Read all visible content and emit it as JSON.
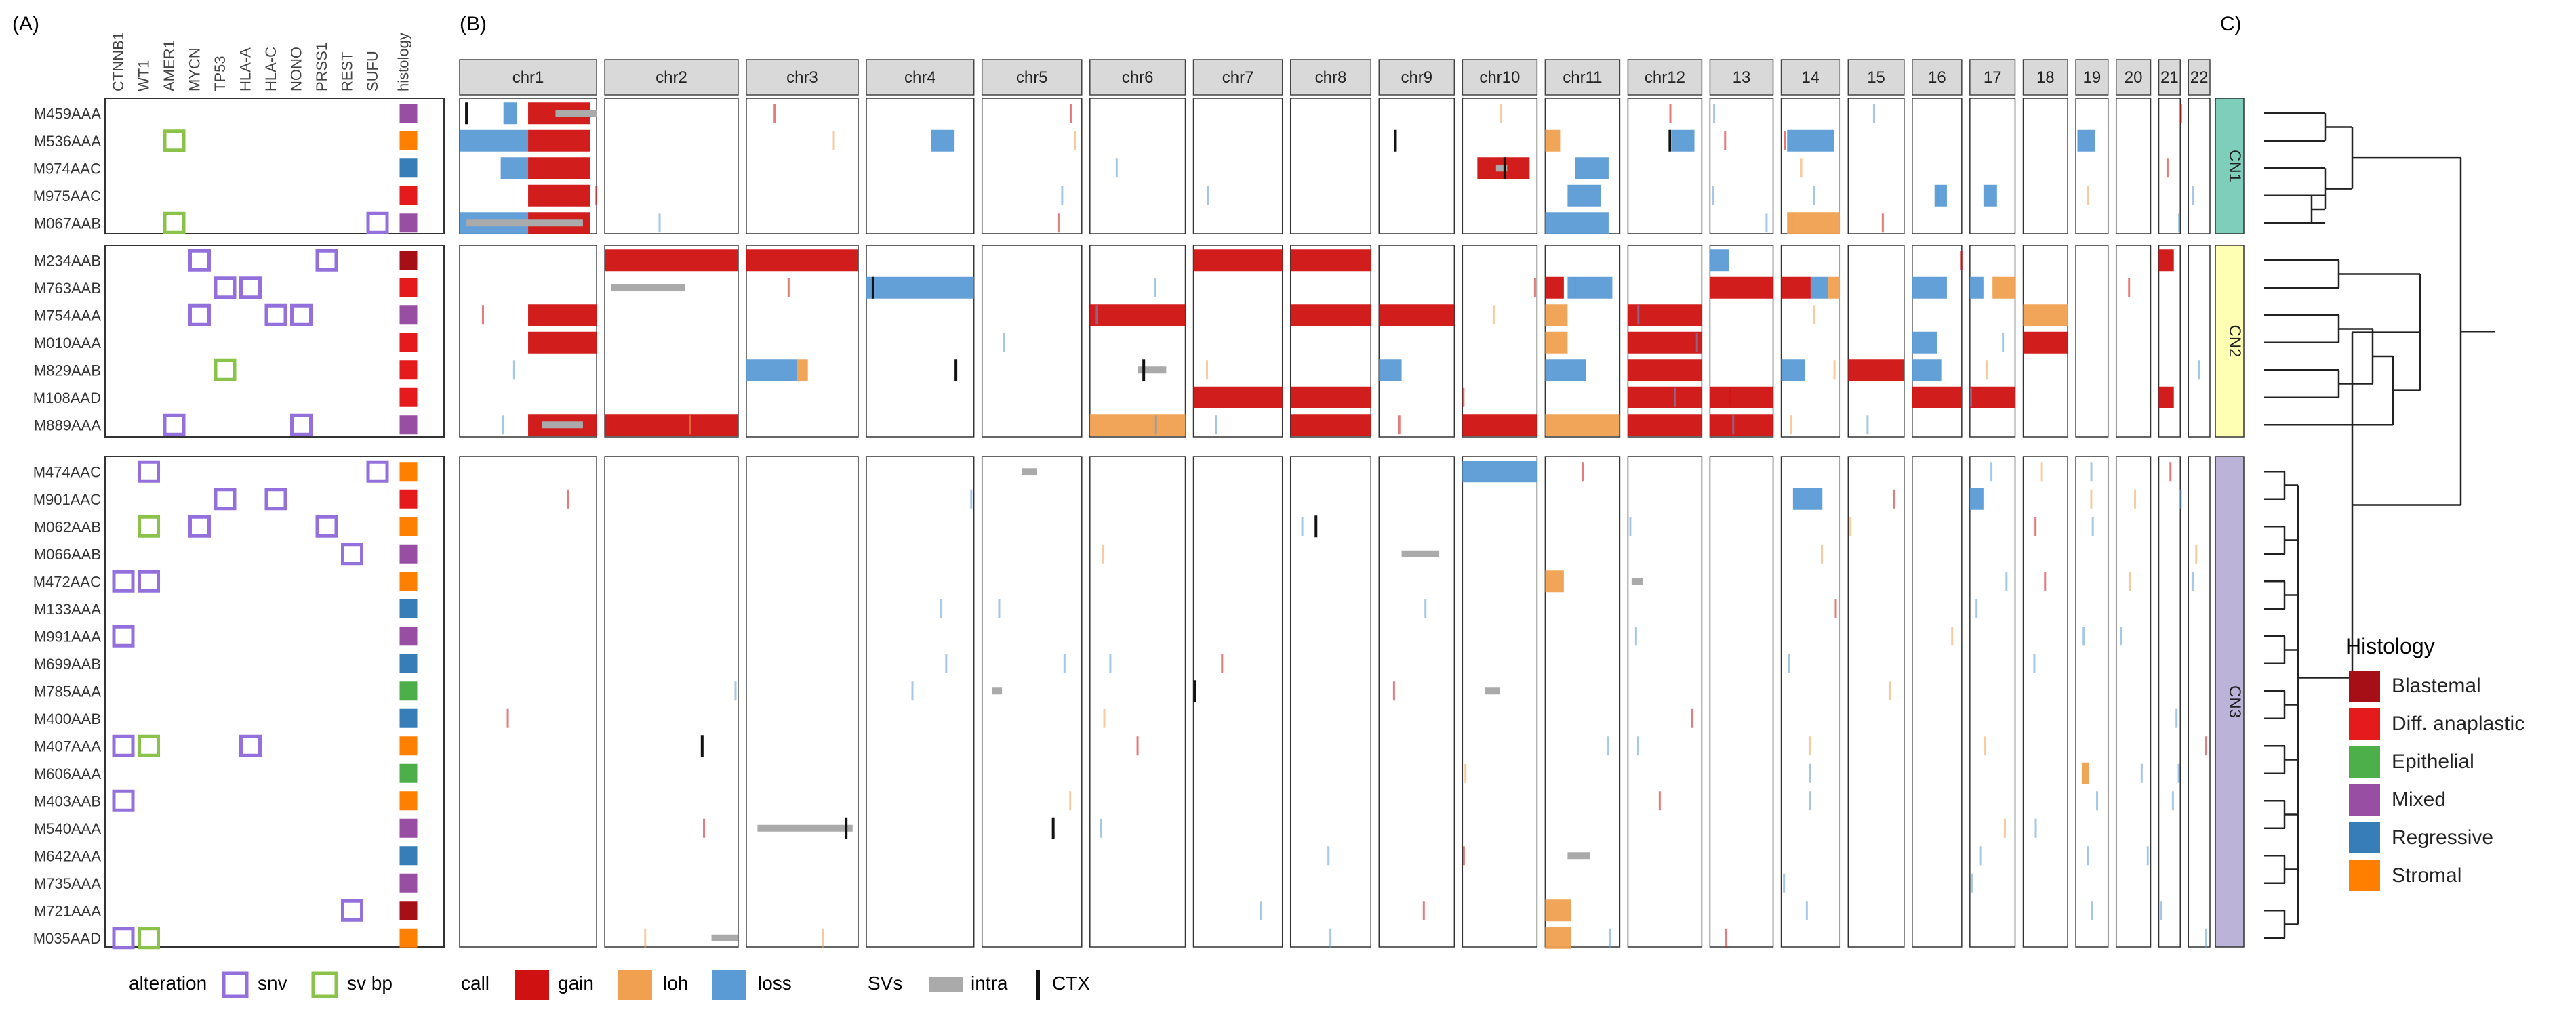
{
  "panel_labels": {
    "a": "(A)",
    "b": "(B)",
    "c": "C)"
  },
  "genes": [
    "CTNNB1",
    "WT1",
    "AMER1",
    "MYCN",
    "TP53",
    "HLA-A",
    "HLA-C",
    "NONO",
    "PRSS1",
    "REST",
    "SUFU"
  ],
  "histology_col": "histology",
  "chromosomes": [
    {
      "name": "chr1",
      "w": 191
    },
    {
      "name": "chr2",
      "w": 186
    },
    {
      "name": "chr3",
      "w": 156
    },
    {
      "name": "chr4",
      "w": 150
    },
    {
      "name": "chr5",
      "w": 139
    },
    {
      "name": "chr6",
      "w": 133
    },
    {
      "name": "chr7",
      "w": 124
    },
    {
      "name": "chr8",
      "w": 112
    },
    {
      "name": "chr9",
      "w": 105
    },
    {
      "name": "chr10",
      "w": 104
    },
    {
      "name": "chr11",
      "w": 104
    },
    {
      "name": "chr12",
      "w": 103
    },
    {
      "name": "13",
      "w": 88
    },
    {
      "name": "14",
      "w": 82
    },
    {
      "name": "15",
      "w": 78
    },
    {
      "name": "16",
      "w": 69
    },
    {
      "name": "17",
      "w": 63
    },
    {
      "name": "18",
      "w": 62
    },
    {
      "name": "19",
      "w": 45
    },
    {
      "name": "20",
      "w": 48
    },
    {
      "name": "21",
      "w": 30
    },
    {
      "name": "22",
      "w": 30
    }
  ],
  "groups": [
    {
      "name": "CN1",
      "color": "#7fcdbb",
      "samples": [
        "M459AAA",
        "M536AAA",
        "M974AAC",
        "M975AAC",
        "M067AAB"
      ]
    },
    {
      "name": "CN2",
      "color": "#ffffb3",
      "samples": [
        "M234AAB",
        "M763AAB",
        "M754AAA",
        "M010AAA",
        "M829AAB",
        "M108AAD",
        "M889AAA"
      ]
    },
    {
      "name": "CN3",
      "color": "#bcb3d9",
      "samples": [
        "M474AAC",
        "M901AAC",
        "M062AAB",
        "M066AAB",
        "M472AAC",
        "M133AAA",
        "M991AAA",
        "M699AAB",
        "M785AAA",
        "M400AAB",
        "M407AAA",
        "M606AAA",
        "M403AAB",
        "M540AAA",
        "M642AAA",
        "M735AAA",
        "M721AAA",
        "M035AAD"
      ]
    }
  ],
  "histology_colors": {
    "Blastemal": "#a50f15",
    "Diff. anaplastic": "#e41a1c",
    "Epithelial": "#4daf4a",
    "Mixed": "#984ea3",
    "Regressive": "#377eb8",
    "Stromal": "#ff7f00"
  },
  "sample_histology": {
    "M459AAA": "Mixed",
    "M536AAA": "Stromal",
    "M974AAC": "Regressive",
    "M975AAC": "Diff. anaplastic",
    "M067AAB": "Mixed",
    "M234AAB": "Blastemal",
    "M763AAB": "Diff. anaplastic",
    "M754AAA": "Mixed",
    "M010AAA": "Diff. anaplastic",
    "M829AAB": "Diff. anaplastic",
    "M108AAD": "Diff. anaplastic",
    "M889AAA": "Mixed",
    "M474AAC": "Stromal",
    "M901AAC": "Diff. anaplastic",
    "M062AAB": "Stromal",
    "M066AAB": "Mixed",
    "M472AAC": "Stromal",
    "M133AAA": "Regressive",
    "M991AAA": "Mixed",
    "M699AAB": "Regressive",
    "M785AAA": "Epithelial",
    "M400AAB": "Regressive",
    "M407AAA": "Stromal",
    "M606AAA": "Epithelial",
    "M403AAB": "Stromal",
    "M540AAA": "Mixed",
    "M642AAA": "Regressive",
    "M735AAA": "Mixed",
    "M721AAA": "Blastemal",
    "M035AAD": "Stromal"
  },
  "alterations": {
    "M536AAA": [
      [
        "AMER1",
        "sv"
      ]
    ],
    "M067AAB": [
      [
        "AMER1",
        "sv"
      ],
      [
        "SUFU",
        "snv"
      ]
    ],
    "M234AAB": [
      [
        "MYCN",
        "snv"
      ],
      [
        "PRSS1",
        "snv"
      ]
    ],
    "M763AAB": [
      [
        "TP53",
        "snv"
      ],
      [
        "HLA-A",
        "snv"
      ]
    ],
    "M754AAA": [
      [
        "MYCN",
        "snv"
      ],
      [
        "HLA-C",
        "snv"
      ],
      [
        "NONO",
        "snv"
      ]
    ],
    "M829AAB": [
      [
        "TP53",
        "sv"
      ]
    ],
    "M889AAA": [
      [
        "AMER1",
        "snv"
      ],
      [
        "NONO",
        "snv"
      ]
    ],
    "M474AAC": [
      [
        "WT1",
        "snv"
      ],
      [
        "SUFU",
        "snv"
      ]
    ],
    "M901AAC": [
      [
        "TP53",
        "snv"
      ],
      [
        "HLA-C",
        "snv"
      ]
    ],
    "M062AAB": [
      [
        "WT1",
        "sv"
      ],
      [
        "MYCN",
        "snv"
      ],
      [
        "PRSS1",
        "snv"
      ]
    ],
    "M066AAB": [
      [
        "REST",
        "snv"
      ]
    ],
    "M472AAC": [
      [
        "CTNNB1",
        "snv"
      ],
      [
        "WT1",
        "snv"
      ]
    ],
    "M991AAA": [
      [
        "CTNNB1",
        "snv"
      ]
    ],
    "M407AAA": [
      [
        "CTNNB1",
        "snv"
      ],
      [
        "WT1",
        "sv"
      ],
      [
        "HLA-A",
        "snv"
      ]
    ],
    "M403AAB": [
      [
        "CTNNB1",
        "snv"
      ]
    ],
    "M721AAA": [
      [
        "REST",
        "snv"
      ]
    ],
    "M035AAD": [
      [
        "CTNNB1",
        "snv"
      ],
      [
        "WT1",
        "sv"
      ]
    ]
  },
  "call_colors": {
    "gain": "#d01111",
    "loh": "#f0a050",
    "loss": "#5b9bd5",
    "intra": "#aaaaaa",
    "ctx": "#111111"
  },
  "cnv_events": [
    [
      "M459AAA",
      "chr1",
      0.5,
      0.95,
      "gain"
    ],
    [
      "M459AAA",
      "chr1",
      0.32,
      0.42,
      "loss"
    ],
    [
      "M459AAA",
      "chr1",
      0.7,
      1.0,
      "intra"
    ],
    [
      "M536AAA",
      "chr1",
      0.0,
      0.5,
      "loss"
    ],
    [
      "M536AAA",
      "chr1",
      0.5,
      0.95,
      "gain"
    ],
    [
      "M974AAC",
      "chr1",
      0.3,
      0.5,
      "loss"
    ],
    [
      "M974AAC",
      "chr1",
      0.5,
      0.95,
      "gain"
    ],
    [
      "M975AAC",
      "chr1",
      0.5,
      0.95,
      "gain"
    ],
    [
      "M067AAB",
      "chr1",
      0.0,
      0.5,
      "loss"
    ],
    [
      "M067AAB",
      "chr1",
      0.5,
      0.95,
      "gain"
    ],
    [
      "M067AAB",
      "chr1",
      0.05,
      0.9,
      "intra"
    ],
    [
      "M536AAA",
      "chr4",
      0.6,
      0.82,
      "loss"
    ],
    [
      "M974AAC",
      "chr10",
      0.2,
      0.9,
      "gain"
    ],
    [
      "M974AAC",
      "chr10",
      0.45,
      0.6,
      "intra"
    ],
    [
      "M536AAA",
      "chr11",
      0.0,
      0.2,
      "loh"
    ],
    [
      "M974AAC",
      "chr11",
      0.4,
      0.85,
      "loss"
    ],
    [
      "M975AAC",
      "chr11",
      0.3,
      0.75,
      "loss"
    ],
    [
      "M067AAB",
      "chr11",
      0.0,
      0.85,
      "loss"
    ],
    [
      "M536AAA",
      "chr12",
      0.6,
      0.9,
      "loss"
    ],
    [
      "M536AAA",
      "14",
      0.1,
      0.9,
      "loss"
    ],
    [
      "M067AAB",
      "14",
      0.1,
      1.0,
      "loh"
    ],
    [
      "M536AAA",
      "19",
      0.05,
      0.6,
      "loss"
    ],
    [
      "M975AAC",
      "16",
      0.45,
      0.7,
      "loss"
    ],
    [
      "M975AAC",
      "17",
      0.3,
      0.6,
      "loss"
    ],
    [
      "M234AAB",
      "chr2",
      0.0,
      1.0,
      "gain"
    ],
    [
      "M234AAB",
      "chr3",
      0.0,
      1.0,
      "gain"
    ],
    [
      "M234AAB",
      "chr7",
      0.0,
      1.0,
      "gain"
    ],
    [
      "M234AAB",
      "chr8",
      0.0,
      1.0,
      "gain"
    ],
    [
      "M234AAB",
      "13",
      0.0,
      0.3,
      "loss"
    ],
    [
      "M234AAB",
      "21",
      0.0,
      0.7,
      "gain"
    ],
    [
      "M763AAB",
      "chr2",
      0.05,
      0.6,
      "intra"
    ],
    [
      "M763AAB",
      "chr4",
      0.0,
      1.0,
      "loss"
    ],
    [
      "M763AAB",
      "chr11",
      0.0,
      0.25,
      "gain"
    ],
    [
      "M763AAB",
      "chr11",
      0.3,
      0.9,
      "loss"
    ],
    [
      "M763AAB",
      "13",
      0.0,
      1.0,
      "gain"
    ],
    [
      "M763AAB",
      "14",
      0.0,
      0.5,
      "gain"
    ],
    [
      "M763AAB",
      "14",
      0.5,
      0.8,
      "loss"
    ],
    [
      "M763AAB",
      "14",
      0.8,
      1.0,
      "loh"
    ],
    [
      "M763AAB",
      "16",
      0.0,
      0.7,
      "loss"
    ],
    [
      "M763AAB",
      "17",
      0.0,
      0.3,
      "loss"
    ],
    [
      "M763AAB",
      "17",
      0.5,
      1.0,
      "loh"
    ],
    [
      "M754AAA",
      "chr1",
      0.5,
      1.0,
      "gain"
    ],
    [
      "M754AAA",
      "chr6",
      0.0,
      1.0,
      "gain"
    ],
    [
      "M754AAA",
      "chr8",
      0.0,
      1.0,
      "gain"
    ],
    [
      "M754AAA",
      "chr9",
      0.0,
      1.0,
      "gain"
    ],
    [
      "M754AAA",
      "chr11",
      0.0,
      0.3,
      "loh"
    ],
    [
      "M754AAA",
      "chr12",
      0.0,
      1.0,
      "gain"
    ],
    [
      "M754AAA",
      "18",
      0.0,
      1.0,
      "loh"
    ],
    [
      "M010AAA",
      "chr1",
      0.5,
      1.0,
      "gain"
    ],
    [
      "M010AAA",
      "chr11",
      0.0,
      0.3,
      "loh"
    ],
    [
      "M010AAA",
      "chr12",
      0.0,
      1.0,
      "gain"
    ],
    [
      "M010AAA",
      "16",
      0.0,
      0.5,
      "loss"
    ],
    [
      "M010AAA",
      "18",
      0.0,
      1.0,
      "gain"
    ],
    [
      "M829AAB",
      "chr3",
      0.0,
      0.45,
      "loss"
    ],
    [
      "M829AAB",
      "chr3",
      0.45,
      0.55,
      "loh"
    ],
    [
      "M829AAB",
      "chr9",
      0.0,
      0.3,
      "loss"
    ],
    [
      "M829AAB",
      "chr11",
      0.0,
      0.55,
      "loss"
    ],
    [
      "M829AAB",
      "chr12",
      0.0,
      1.0,
      "gain"
    ],
    [
      "M829AAB",
      "14",
      0.0,
      0.4,
      "loss"
    ],
    [
      "M829AAB",
      "15",
      0.0,
      1.0,
      "gain"
    ],
    [
      "M829AAB",
      "16",
      0.0,
      0.6,
      "loss"
    ],
    [
      "M829AAB",
      "chr6",
      0.5,
      0.8,
      "intra"
    ],
    [
      "M108AAD",
      "chr7",
      0.0,
      1.0,
      "gain"
    ],
    [
      "M108AAD",
      "chr8",
      0.0,
      1.0,
      "gain"
    ],
    [
      "M108AAD",
      "chr12",
      0.0,
      1.0,
      "gain"
    ],
    [
      "M108AAD",
      "13",
      0.0,
      1.0,
      "gain"
    ],
    [
      "M108AAD",
      "16",
      0.0,
      1.0,
      "gain"
    ],
    [
      "M108AAD",
      "17",
      0.0,
      1.0,
      "gain"
    ],
    [
      "M108AAD",
      "21",
      0.0,
      0.7,
      "gain"
    ],
    [
      "M889AAA",
      "chr1",
      0.5,
      1.0,
      "gain"
    ],
    [
      "M889AAA",
      "chr1",
      0.6,
      0.9,
      "intra"
    ],
    [
      "M889AAA",
      "chr2",
      0.0,
      1.0,
      "gain"
    ],
    [
      "M889AAA",
      "chr6",
      0.0,
      1.0,
      "loh"
    ],
    [
      "M889AAA",
      "chr8",
      0.0,
      1.0,
      "gain"
    ],
    [
      "M889AAA",
      "chr10",
      0.0,
      1.0,
      "gain"
    ],
    [
      "M889AAA",
      "chr11",
      0.0,
      1.0,
      "loh"
    ],
    [
      "M889AAA",
      "chr12",
      0.0,
      1.0,
      "gain"
    ],
    [
      "M889AAA",
      "13",
      0.0,
      1.0,
      "gain"
    ],
    [
      "M474AAC",
      "chr10",
      0.0,
      1.0,
      "loss"
    ],
    [
      "M474AAC",
      "chr5",
      0.4,
      0.55,
      "intra"
    ],
    [
      "M901AAC",
      "14",
      0.2,
      0.7,
      "loss"
    ],
    [
      "M901AAC",
      "17",
      0.0,
      0.3,
      "loss"
    ],
    [
      "M066AAB",
      "chr9",
      0.3,
      0.8,
      "intra"
    ],
    [
      "M472AAC",
      "chr11",
      0.0,
      0.25,
      "loh"
    ],
    [
      "M472AAC",
      "chr12",
      0.05,
      0.2,
      "intra"
    ],
    [
      "M785AAA",
      "chr10",
      0.3,
      0.5,
      "intra"
    ],
    [
      "M785AAA",
      "chr5",
      0.1,
      0.2,
      "intra"
    ],
    [
      "M540AAA",
      "chr3",
      0.1,
      0.95,
      "intra"
    ],
    [
      "M642AAA",
      "chr11",
      0.3,
      0.6,
      "intra"
    ],
    [
      "M721AAA",
      "chr11",
      0.0,
      0.35,
      "loh"
    ],
    [
      "M035AAD",
      "chr11",
      0.0,
      0.35,
      "loh"
    ],
    [
      "M035AAD",
      "chr2",
      0.8,
      1.0,
      "intra"
    ],
    [
      "M606AAA",
      "19",
      0.2,
      0.4,
      "loh"
    ]
  ],
  "legend_bottom": {
    "alteration_title": "alteration",
    "snv": "snv",
    "sv_bp": "sv bp",
    "call_title": "call",
    "gain": "gain",
    "loh": "loh",
    "loss": "loss",
    "svs_title": "SVs",
    "intra": "intra",
    "ctx": "CTX"
  },
  "histology_legend_title": "Histology"
}
